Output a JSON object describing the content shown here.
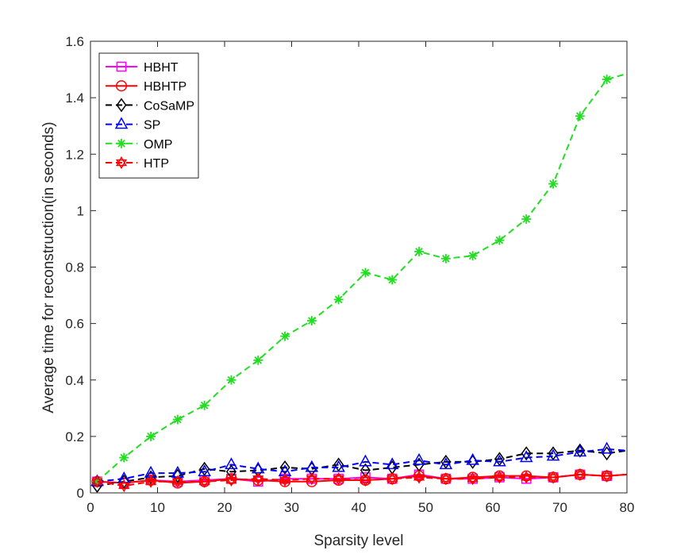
{
  "chart_data": {
    "type": "line",
    "title": "",
    "xlabel": "Sparsity  level",
    "ylabel": "Average time for reconstruction(in seconds)",
    "xlim": [
      0,
      80
    ],
    "ylim": [
      0,
      1.6
    ],
    "xticks": [
      0,
      10,
      20,
      30,
      40,
      50,
      60,
      70,
      80
    ],
    "xtick_labels": [
      "0",
      "10",
      "20",
      "30",
      "40",
      "50",
      "60",
      "70",
      "80"
    ],
    "yticks": [
      0,
      0.2,
      0.4,
      0.6,
      0.8,
      1,
      1.2,
      1.4,
      1.6
    ],
    "ytick_labels": [
      "0",
      "0.2",
      "0.4",
      "0.6",
      "0.8",
      "1",
      "1.2",
      "1.4",
      "1.6"
    ],
    "grid": false,
    "legend_position": "top-left",
    "x": [
      1,
      5,
      9,
      13,
      17,
      21,
      25,
      29,
      33,
      37,
      41,
      45,
      49,
      53,
      57,
      61,
      65,
      69,
      73,
      77
    ],
    "x_end": 80,
    "series": [
      {
        "name": "HBHT",
        "color": "#ff00ff",
        "marker": "square",
        "dashed": false,
        "values": [
          0.04,
          0.035,
          0.045,
          0.04,
          0.045,
          0.05,
          0.04,
          0.05,
          0.05,
          0.05,
          0.055,
          0.05,
          0.065,
          0.05,
          0.05,
          0.055,
          0.05,
          0.055,
          0.065,
          0.06
        ],
        "end_value": 0.065
      },
      {
        "name": "HBHTP",
        "color": "#ff0000",
        "marker": "circle",
        "dashed": false,
        "values": [
          0.04,
          0.035,
          0.045,
          0.035,
          0.04,
          0.05,
          0.045,
          0.04,
          0.04,
          0.045,
          0.045,
          0.05,
          0.06,
          0.05,
          0.055,
          0.06,
          0.06,
          0.055,
          0.065,
          0.06
        ],
        "end_value": 0.065
      },
      {
        "name": "CoSaMP",
        "color": "#000000",
        "marker": "diamond",
        "dashed": true,
        "values": [
          0.025,
          0.04,
          0.055,
          0.06,
          0.085,
          0.075,
          0.08,
          0.09,
          0.085,
          0.1,
          0.08,
          0.09,
          0.1,
          0.11,
          0.11,
          0.12,
          0.14,
          0.14,
          0.15,
          0.14
        ],
        "end_value": 0.15
      },
      {
        "name": "SP",
        "color": "#0000ff",
        "marker": "triangle",
        "dashed": true,
        "values": [
          0.04,
          0.05,
          0.07,
          0.07,
          0.075,
          0.1,
          0.085,
          0.075,
          0.09,
          0.09,
          0.11,
          0.1,
          0.115,
          0.1,
          0.115,
          0.11,
          0.125,
          0.13,
          0.145,
          0.155
        ],
        "end_value": 0.15
      },
      {
        "name": "OMP",
        "color": "#22dd22",
        "marker": "asterisk",
        "dashed": true,
        "values": [
          0.04,
          0.125,
          0.2,
          0.26,
          0.31,
          0.4,
          0.47,
          0.555,
          0.61,
          0.685,
          0.78,
          0.755,
          0.855,
          0.83,
          0.84,
          0.895,
          0.97,
          1.095,
          1.335,
          1.465
        ],
        "end_value": 1.485
      },
      {
        "name": "HTP",
        "color": "#ff0000",
        "marker": "hexagram",
        "dashed": true,
        "values": [
          0.04,
          0.025,
          0.04,
          0.04,
          0.04,
          0.045,
          0.05,
          0.045,
          0.05,
          0.05,
          0.045,
          0.05,
          0.055,
          0.05,
          0.05,
          0.055,
          0.055,
          0.055,
          0.065,
          0.06
        ],
        "end_value": 0.065
      }
    ]
  }
}
